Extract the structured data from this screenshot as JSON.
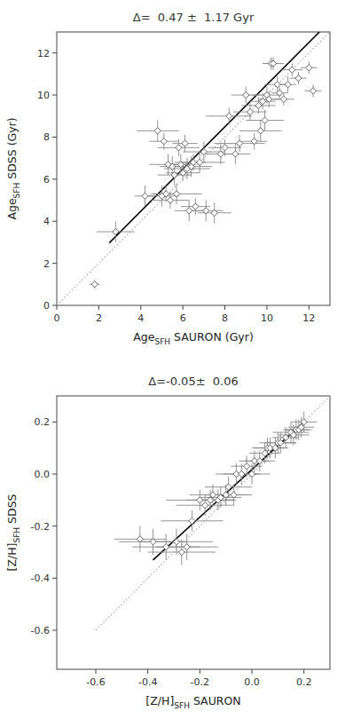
{
  "chart_data": [
    {
      "type": "scatter",
      "title": "Δ=  0.47 ±  1.17 Gyr",
      "x_label": "AgeSFH SAURON (Gyr)",
      "y_label": "AgeSFH SDSS (Gyr)",
      "xlim": [
        0,
        13
      ],
      "ylim": [
        0,
        13
      ],
      "xticks": [
        0,
        2,
        4,
        6,
        8,
        10,
        12
      ],
      "yticks": [
        0,
        2,
        4,
        6,
        8,
        10,
        12
      ],
      "series": [
        {
          "type": "scatter",
          "marker": "diamond",
          "color": "#555555",
          "x": [
            1.8,
            2.8,
            4.2,
            4.8,
            5.0,
            5.1,
            5.2,
            5.3,
            5.4,
            5.5,
            5.6,
            5.7,
            5.8,
            5.9,
            6.0,
            6.1,
            6.2,
            6.3,
            6.4,
            6.5,
            6.6,
            6.8,
            7.0,
            7.1,
            7.5,
            7.8,
            8.0,
            8.2,
            8.5,
            8.7,
            9.0,
            9.2,
            9.4,
            9.6,
            9.7,
            9.8,
            9.9,
            10.0,
            10.1,
            10.2,
            10.3,
            10.5,
            10.6,
            10.8,
            11.0,
            11.2,
            11.5,
            12.0,
            12.2
          ],
          "values": [
            1.0,
            3.5,
            5.2,
            8.3,
            5.2,
            7.8,
            5.3,
            6.7,
            5.0,
            6.6,
            6.2,
            5.3,
            7.5,
            6.7,
            6.3,
            7.7,
            6.5,
            4.5,
            6.6,
            6.8,
            4.7,
            6.8,
            7.3,
            4.5,
            4.4,
            7.2,
            7.5,
            9.0,
            7.2,
            7.7,
            10.0,
            9.2,
            7.8,
            9.5,
            8.3,
            9.7,
            8.8,
            10.0,
            9.8,
            11.5,
            11.5,
            10.5,
            10.1,
            9.8,
            10.5,
            11.2,
            10.8,
            11.3,
            10.2
          ],
          "x_error": [
            0.25,
            0.9,
            0.5,
            1.0,
            0.8,
            0.7,
            0.6,
            0.9,
            0.9,
            0.6,
            0.8,
            1.2,
            1.0,
            0.7,
            0.8,
            0.6,
            1.1,
            0.7,
            1.0,
            0.6,
            0.7,
            1.2,
            1.0,
            0.8,
            0.8,
            0.9,
            0.8,
            1.1,
            0.7,
            1.2,
            0.7,
            0.8,
            0.6,
            0.8,
            1.0,
            0.6,
            0.9,
            0.7,
            0.5,
            0.4,
            0.5,
            0.6,
            0.4,
            0.5,
            0.4,
            0.5,
            0.4,
            0.4,
            0.4
          ],
          "y_error": [
            0.2,
            0.5,
            0.5,
            0.5,
            0.5,
            0.4,
            0.4,
            0.5,
            0.4,
            0.5,
            0.5,
            0.5,
            0.4,
            0.5,
            0.4,
            0.4,
            0.5,
            0.5,
            0.5,
            0.4,
            0.4,
            0.5,
            0.5,
            0.5,
            0.5,
            0.5,
            0.4,
            0.4,
            0.5,
            0.4,
            0.4,
            0.4,
            0.4,
            0.4,
            0.5,
            0.4,
            0.5,
            0.4,
            0.4,
            0.3,
            0.3,
            0.4,
            0.3,
            0.3,
            0.4,
            0.3,
            0.3,
            0.3,
            0.3
          ]
        },
        {
          "type": "line",
          "line_style": "solid",
          "color": "#000000",
          "x": [
            2.5,
            12.5
          ],
          "values": [
            2.97,
            13.0
          ]
        },
        {
          "type": "line",
          "line_style": "dotted",
          "color": "#aaaaaa",
          "x": [
            0,
            13
          ],
          "values": [
            0,
            13
          ]
        }
      ]
    },
    {
      "type": "scatter",
      "title": "Δ=-0.05±  0.06",
      "x_label": "[Z/H]SFH SAURON",
      "y_label": "[Z/H]SFH SDSS",
      "xlim": [
        -0.75,
        0.3
      ],
      "ylim": [
        -0.75,
        0.3
      ],
      "xticks": [
        -0.6,
        -0.4,
        -0.2,
        {
          "value": 0.0,
          "label": "0.0"
        },
        0.2
      ],
      "yticks": [
        -0.6,
        -0.4,
        -0.2,
        {
          "value": 0.0,
          "label": "0.0"
        },
        0.2
      ],
      "series": [
        {
          "type": "scatter",
          "marker": "diamond",
          "color": "#555555",
          "x": [
            -0.43,
            -0.38,
            -0.33,
            -0.29,
            -0.27,
            -0.25,
            -0.23,
            -0.2,
            -0.18,
            -0.16,
            -0.15,
            -0.13,
            -0.12,
            -0.1,
            -0.09,
            -0.07,
            -0.06,
            -0.04,
            -0.02,
            0.0,
            0.01,
            0.03,
            0.05,
            0.06,
            0.07,
            0.09,
            0.1,
            0.11,
            0.13,
            0.15,
            0.16,
            0.17,
            0.18,
            0.19,
            0.2
          ],
          "values": [
            -0.25,
            -0.26,
            -0.28,
            -0.26,
            -0.3,
            -0.28,
            -0.18,
            -0.1,
            -0.12,
            -0.1,
            -0.08,
            -0.1,
            -0.09,
            -0.08,
            -0.05,
            -0.08,
            0.0,
            0.0,
            0.03,
            0.0,
            0.05,
            0.05,
            0.08,
            0.1,
            0.1,
            0.1,
            0.12,
            0.12,
            0.14,
            0.16,
            0.15,
            0.17,
            0.17,
            0.18,
            0.2
          ],
          "x_error": [
            0.1,
            0.13,
            0.13,
            0.14,
            0.13,
            0.12,
            0.12,
            0.13,
            0.11,
            0.09,
            0.09,
            0.07,
            0.08,
            0.08,
            0.09,
            0.07,
            0.08,
            0.07,
            0.06,
            0.07,
            0.06,
            0.06,
            0.06,
            0.06,
            0.06,
            0.05,
            0.07,
            0.06,
            0.05,
            0.07,
            0.06,
            0.05,
            0.05,
            0.05,
            0.05
          ],
          "y_error": [
            0.05,
            0.05,
            0.05,
            0.05,
            0.05,
            0.05,
            0.04,
            0.04,
            0.04,
            0.04,
            0.04,
            0.04,
            0.04,
            0.04,
            0.04,
            0.04,
            0.04,
            0.04,
            0.04,
            0.04,
            0.04,
            0.04,
            0.04,
            0.04,
            0.04,
            0.04,
            0.04,
            0.04,
            0.04,
            0.04,
            0.04,
            0.04,
            0.04,
            0.04,
            0.04
          ]
        },
        {
          "type": "line",
          "line_style": "solid",
          "color": "#000000",
          "x": [
            -0.38,
            0.2
          ],
          "values": [
            -0.33,
            0.2
          ]
        },
        {
          "type": "line",
          "line_style": "dotted",
          "color": "#aaaaaa",
          "x": [
            -0.6,
            0.3
          ],
          "values": [
            -0.6,
            0.3
          ]
        }
      ]
    }
  ]
}
